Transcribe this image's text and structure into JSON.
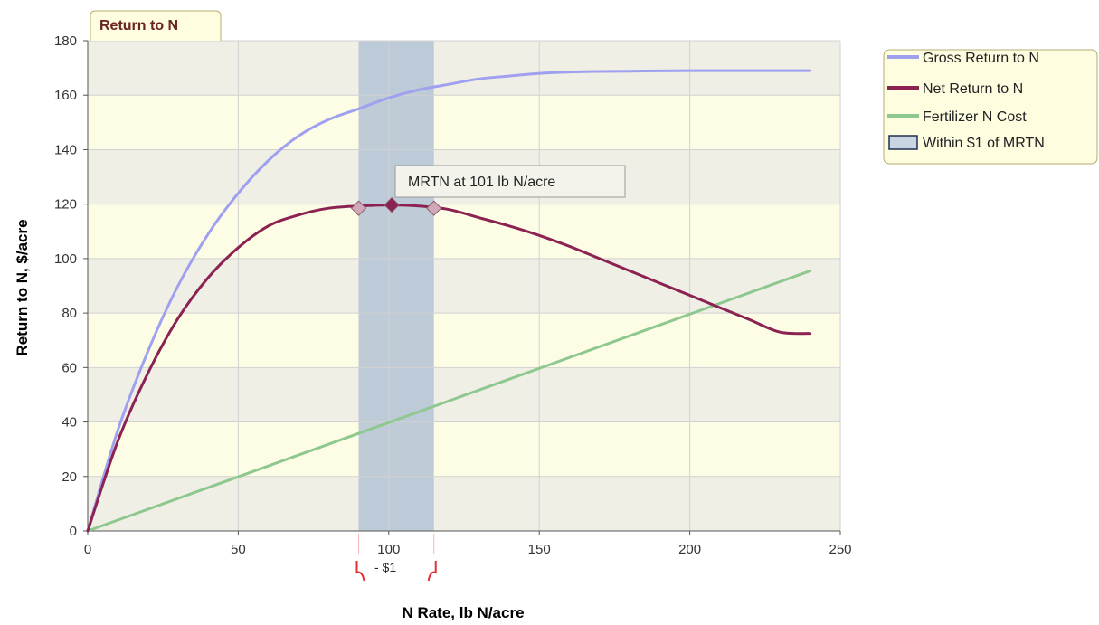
{
  "chart_data": {
    "type": "line",
    "title": "Return to N",
    "xlabel": "N Rate, lb N/acre",
    "ylabel": "Return to N, $/acre",
    "xlim": [
      0,
      250
    ],
    "ylim": [
      0,
      180
    ],
    "x_ticks": [
      "0",
      "50",
      "100",
      "150",
      "200",
      "250"
    ],
    "y_ticks": [
      "0",
      "20",
      "40",
      "60",
      "80",
      "100",
      "120",
      "140",
      "160",
      "180"
    ],
    "grid": true,
    "legend_position": "right",
    "series": [
      {
        "name": "Gross Return to N",
        "color": "#a0a0f0",
        "x": [
          0,
          10,
          20,
          30,
          40,
          50,
          60,
          70,
          80,
          90,
          100,
          110,
          120,
          130,
          140,
          150,
          160,
          170,
          180,
          190,
          200,
          210,
          220,
          230,
          240
        ],
        "y": [
          0,
          37,
          66,
          90,
          109,
          124,
          136,
          145,
          151,
          155,
          159,
          162,
          164,
          166,
          167,
          168,
          168.5,
          168.7,
          168.8,
          168.9,
          169,
          169,
          169,
          169,
          169
        ]
      },
      {
        "name": "Net Return to N",
        "color": "#8b2252",
        "x": [
          0,
          10,
          20,
          30,
          40,
          50,
          60,
          70,
          80,
          90,
          100,
          110,
          120,
          130,
          140,
          150,
          160,
          170,
          180,
          190,
          200,
          210,
          220,
          230,
          240
        ],
        "y": [
          0,
          33,
          58,
          78,
          93,
          104,
          112,
          116,
          118.5,
          119.3,
          119.7,
          119.3,
          118,
          115,
          112,
          108.5,
          104.5,
          100,
          95.5,
          91,
          86.5,
          82,
          77.5,
          73,
          72.5
        ]
      },
      {
        "name": "Fertilizer N Cost",
        "color": "#8fc88f",
        "x": [
          0,
          240
        ],
        "y": [
          0,
          95.5
        ]
      }
    ],
    "band": {
      "name": "Within $1 of MRTN",
      "x_start": 90,
      "x_end": 115,
      "color": "#b4c3d3"
    },
    "markers": [
      {
        "x": 90,
        "y": 118.5,
        "color": "#d0a8b8"
      },
      {
        "x": 101,
        "y": 119.7,
        "color": "#8b2252"
      },
      {
        "x": 115,
        "y": 118.5,
        "color": "#d0a8b8"
      }
    ],
    "annotation": {
      "text": "MRTN at 101 lb N/acre",
      "x": 101,
      "y": 119.7
    },
    "range_label": "- $1"
  }
}
